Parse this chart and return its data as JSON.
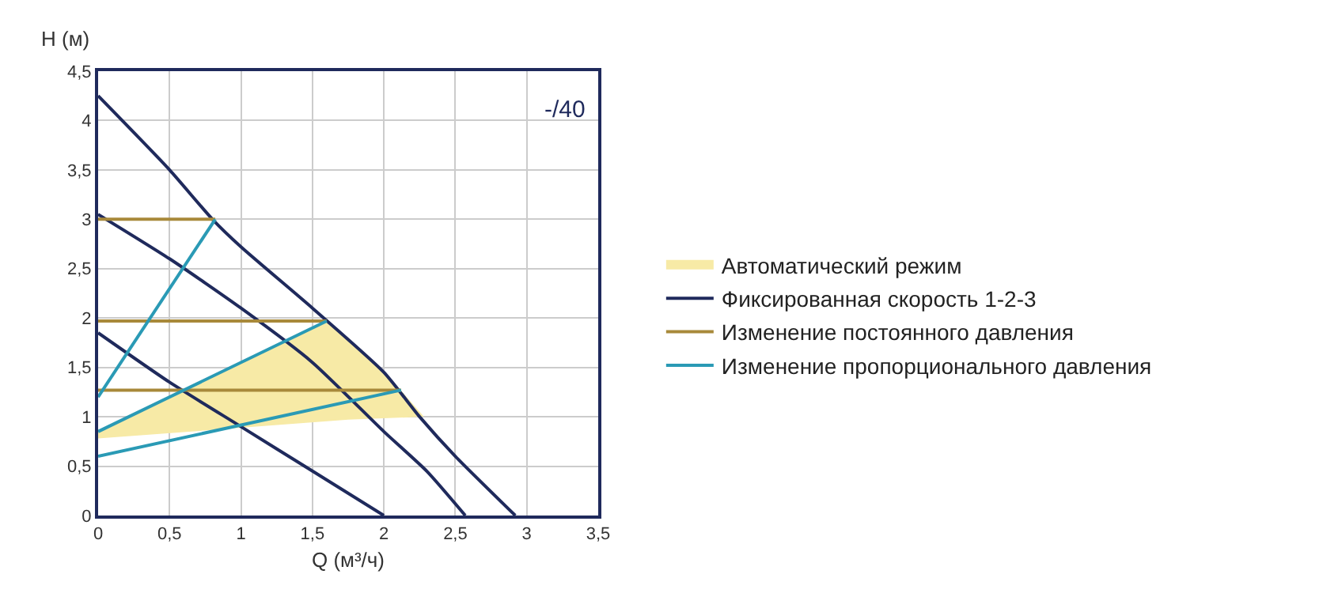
{
  "chart_data": {
    "type": "line",
    "xlabel": "Q (м³/ч)",
    "ylabel": "H (м)",
    "annotations": [
      "-/40"
    ],
    "xlim": [
      0,
      3.5
    ],
    "xticks": [
      0,
      {
        "value": 0.5,
        "label": "0,5"
      },
      1,
      {
        "value": 1.5,
        "label": "1,5"
      },
      2,
      {
        "value": 2.5,
        "label": "2,5"
      },
      3,
      {
        "value": 3.5,
        "label": "3,5"
      }
    ],
    "ylim": [
      0,
      4.5
    ],
    "yticks": [
      0,
      {
        "value": 0.5,
        "label": "0,5"
      },
      1,
      {
        "value": 1.5,
        "label": "1,5"
      },
      2,
      {
        "value": 2.5,
        "label": "2,5"
      },
      3,
      {
        "value": 3.5,
        "label": "3,5"
      },
      4,
      {
        "value": 4.5,
        "label": "4,5"
      }
    ],
    "grid": true,
    "legend": "right",
    "marker": "none",
    "line_style": "solid",
    "series": [
      {
        "name": "Автоматический режим",
        "type": "area",
        "color": "#f7eaa6",
        "x": [
          0,
          1.6,
          1.9,
          2.1,
          2.28,
          1.75,
          0
        ],
        "values": [
          0.85,
          1.97,
          1.6,
          1.3,
          1.0,
          0.97,
          0.78
        ]
      },
      {
        "name": "Фиксированная скорость 1-2-3",
        "color": "#1f2a5c",
        "x": [
          0,
          0.5,
          0.8,
          1,
          1.5,
          2,
          2.25,
          2.5,
          2.92
        ],
        "values": [
          4.25,
          3.5,
          3.0,
          2.72,
          2.1,
          1.45,
          1.0,
          0.6,
          0
        ]
      },
      {
        "color": "#1f2a5c",
        "x": [
          0,
          0.5,
          1,
          1.5,
          2,
          2.3,
          2.57
        ],
        "values": [
          3.05,
          2.6,
          2.1,
          1.55,
          0.85,
          0.45,
          0
        ]
      },
      {
        "color": "#1f2a5c",
        "x": [
          0,
          0.5,
          1,
          1.5,
          2
        ],
        "values": [
          1.85,
          1.35,
          0.9,
          0.45,
          0
        ]
      },
      {
        "name": "Изменение постоянного давления",
        "color": "#a8893a",
        "x": [
          0,
          0.82
        ],
        "values": [
          3.0,
          3.0
        ]
      },
      {
        "color": "#a8893a",
        "x": [
          0,
          1.6
        ],
        "values": [
          1.97,
          1.97
        ]
      },
      {
        "color": "#a8893a",
        "x": [
          0,
          2.12
        ],
        "values": [
          1.27,
          1.27
        ]
      },
      {
        "name": "Изменение пропорционального давления",
        "color": "#2a9ab5",
        "x": [
          0,
          0.82
        ],
        "values": [
          1.2,
          3.0
        ]
      },
      {
        "color": "#2a9ab5",
        "x": [
          0,
          1.6
        ],
        "values": [
          0.85,
          1.97
        ]
      },
      {
        "color": "#2a9ab5",
        "x": [
          0,
          2.12
        ],
        "values": [
          0.6,
          1.27
        ]
      }
    ]
  }
}
